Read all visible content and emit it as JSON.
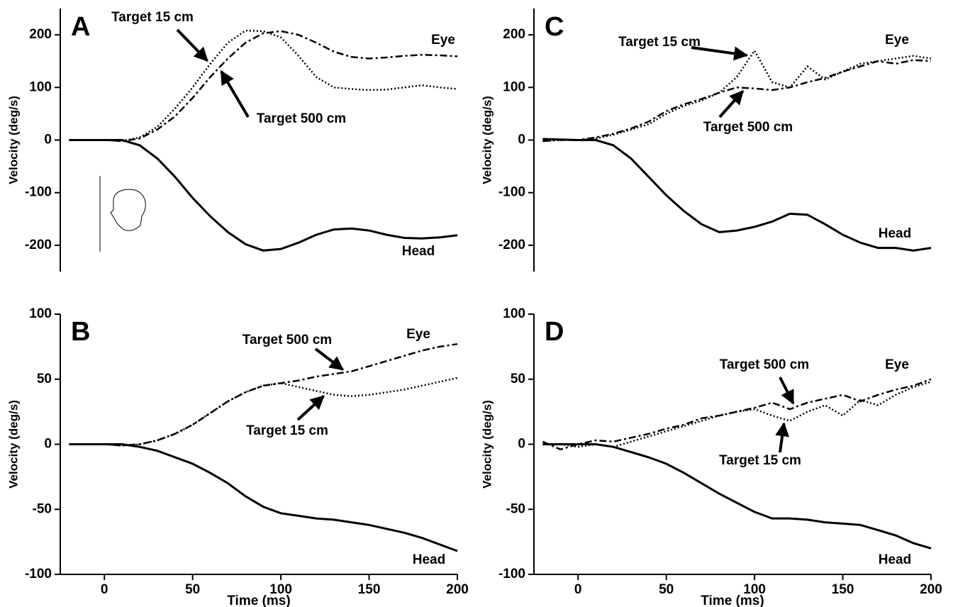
{
  "chart_data": [
    {
      "type": "line",
      "title": "A",
      "y_label": "Velocity (deg/s)",
      "eye_label": "Eye",
      "x": [
        -20,
        -10,
        0,
        10,
        20,
        30,
        40,
        50,
        60,
        70,
        80,
        90,
        100,
        110,
        120,
        130,
        140,
        150,
        160,
        170,
        180,
        190,
        200
      ],
      "xlim": [
        -25,
        200
      ],
      "ylim": [
        -250,
        250
      ],
      "yticks": [
        -200,
        -100,
        0,
        100,
        200
      ],
      "series": [
        {
          "name": "Target 15 cm",
          "color": "#000",
          "line_style": "dotted",
          "values": [
            0,
            0,
            0,
            -2,
            5,
            25,
            60,
            100,
            145,
            185,
            208,
            207,
            195,
            160,
            120,
            100,
            97,
            95,
            96,
            100,
            104,
            100,
            97
          ]
        },
        {
          "name": "Target 500 cm",
          "color": "#000",
          "line_style": "dashed",
          "values": [
            0,
            0,
            0,
            -2,
            3,
            20,
            45,
            80,
            120,
            155,
            185,
            203,
            207,
            200,
            185,
            168,
            158,
            155,
            157,
            160,
            162,
            161,
            159
          ]
        },
        {
          "name": "Head",
          "color": "#000",
          "line_style": "solid",
          "values": [
            0,
            0,
            0,
            0,
            -10,
            -35,
            -70,
            -110,
            -145,
            -175,
            -198,
            -210,
            -207,
            -195,
            -180,
            -170,
            -168,
            -172,
            -180,
            -186,
            -187,
            -185,
            -181
          ]
        }
      ]
    },
    {
      "type": "line",
      "title": "B",
      "y_label": "Velocity (deg/s)",
      "x_label": "Time (ms)",
      "eye_label": "Eye",
      "x": [
        -20,
        -10,
        0,
        10,
        20,
        30,
        40,
        50,
        60,
        70,
        80,
        90,
        100,
        110,
        120,
        130,
        140,
        150,
        160,
        170,
        180,
        190,
        200
      ],
      "xlim": [
        -25,
        200
      ],
      "ylim": [
        -100,
        100
      ],
      "yticks": [
        -100,
        -50,
        0,
        50,
        100
      ],
      "xticks": [
        0,
        50,
        100,
        150,
        200
      ],
      "series": [
        {
          "name": "Target 15 cm",
          "color": "#000",
          "line_style": "dotted",
          "values": [
            0,
            0,
            0,
            -1,
            0,
            3,
            8,
            15,
            24,
            33,
            40,
            45,
            47,
            44,
            41,
            38,
            37,
            38,
            40,
            42,
            45,
            48,
            51
          ]
        },
        {
          "name": "Target 500 cm",
          "color": "#000",
          "line_style": "dashed",
          "values": [
            0,
            0,
            0,
            -1,
            0,
            3,
            8,
            15,
            24,
            33,
            40,
            45,
            47,
            49,
            52,
            54,
            56,
            60,
            64,
            68,
            72,
            75,
            77
          ]
        },
        {
          "name": "Head",
          "color": "#000",
          "line_style": "solid",
          "values": [
            0,
            0,
            0,
            0,
            -2,
            -5,
            -10,
            -15,
            -22,
            -30,
            -40,
            -48,
            -53,
            -55,
            -57,
            -58,
            -60,
            -62,
            -65,
            -68,
            -72,
            -77,
            -82
          ]
        }
      ]
    },
    {
      "type": "line",
      "title": "C",
      "y_label": "Velocity (deg/s)",
      "eye_label": "Eye",
      "x": [
        -20,
        -10,
        0,
        10,
        20,
        30,
        40,
        50,
        60,
        70,
        80,
        90,
        100,
        110,
        120,
        130,
        140,
        150,
        160,
        170,
        180,
        190,
        200
      ],
      "xlim": [
        -25,
        200
      ],
      "ylim": [
        -250,
        250
      ],
      "yticks": [
        -200,
        -100,
        0,
        100,
        200
      ],
      "series": [
        {
          "name": "Target 15 cm",
          "color": "#000",
          "line_style": "dotted",
          "values": [
            -2,
            0,
            0,
            3,
            10,
            20,
            30,
            50,
            65,
            75,
            90,
            120,
            170,
            110,
            100,
            140,
            115,
            130,
            145,
            150,
            155,
            160,
            155
          ]
        },
        {
          "name": "Target 500 cm",
          "color": "#000",
          "line_style": "dashed",
          "values": [
            -2,
            0,
            0,
            5,
            12,
            22,
            35,
            55,
            68,
            78,
            90,
            100,
            98,
            95,
            100,
            110,
            118,
            130,
            140,
            150,
            145,
            152,
            150
          ]
        },
        {
          "name": "Head",
          "color": "#000",
          "line_style": "solid",
          "values": [
            2,
            1,
            0,
            0,
            -10,
            -35,
            -70,
            -105,
            -135,
            -160,
            -175,
            -172,
            -165,
            -155,
            -140,
            -142,
            -160,
            -180,
            -195,
            -205,
            -205,
            -210,
            -205
          ]
        }
      ]
    },
    {
      "type": "line",
      "title": "D",
      "y_label": "Velocity (deg/s)",
      "x_label": "Time (ms)",
      "eye_label": "Eye",
      "x": [
        -20,
        -10,
        0,
        10,
        20,
        30,
        40,
        50,
        60,
        70,
        80,
        90,
        100,
        110,
        120,
        130,
        140,
        150,
        160,
        170,
        180,
        190,
        200
      ],
      "xlim": [
        -25,
        200
      ],
      "ylim": [
        -100,
        100
      ],
      "yticks": [
        -100,
        -50,
        0,
        50,
        100
      ],
      "xticks": [
        0,
        50,
        100,
        150,
        200
      ],
      "series": [
        {
          "name": "Target 15 cm",
          "color": "#000",
          "line_style": "dotted",
          "values": [
            0,
            0,
            -2,
            0,
            -2,
            2,
            6,
            10,
            14,
            18,
            22,
            25,
            27,
            22,
            18,
            25,
            30,
            22,
            34,
            30,
            38,
            44,
            48
          ]
        },
        {
          "name": "Target 500 cm",
          "color": "#000",
          "line_style": "dashed",
          "values": [
            2,
            -4,
            0,
            3,
            2,
            5,
            8,
            12,
            15,
            20,
            22,
            25,
            28,
            32,
            27,
            32,
            35,
            38,
            33,
            38,
            42,
            45,
            50
          ]
        },
        {
          "name": "Head",
          "color": "#000",
          "line_style": "solid",
          "values": [
            0,
            0,
            0,
            0,
            -2,
            -6,
            -10,
            -15,
            -22,
            -30,
            -38,
            -45,
            -52,
            -57,
            -57,
            -58,
            -60,
            -61,
            -62,
            -66,
            -70,
            -76,
            -80
          ]
        }
      ]
    }
  ]
}
